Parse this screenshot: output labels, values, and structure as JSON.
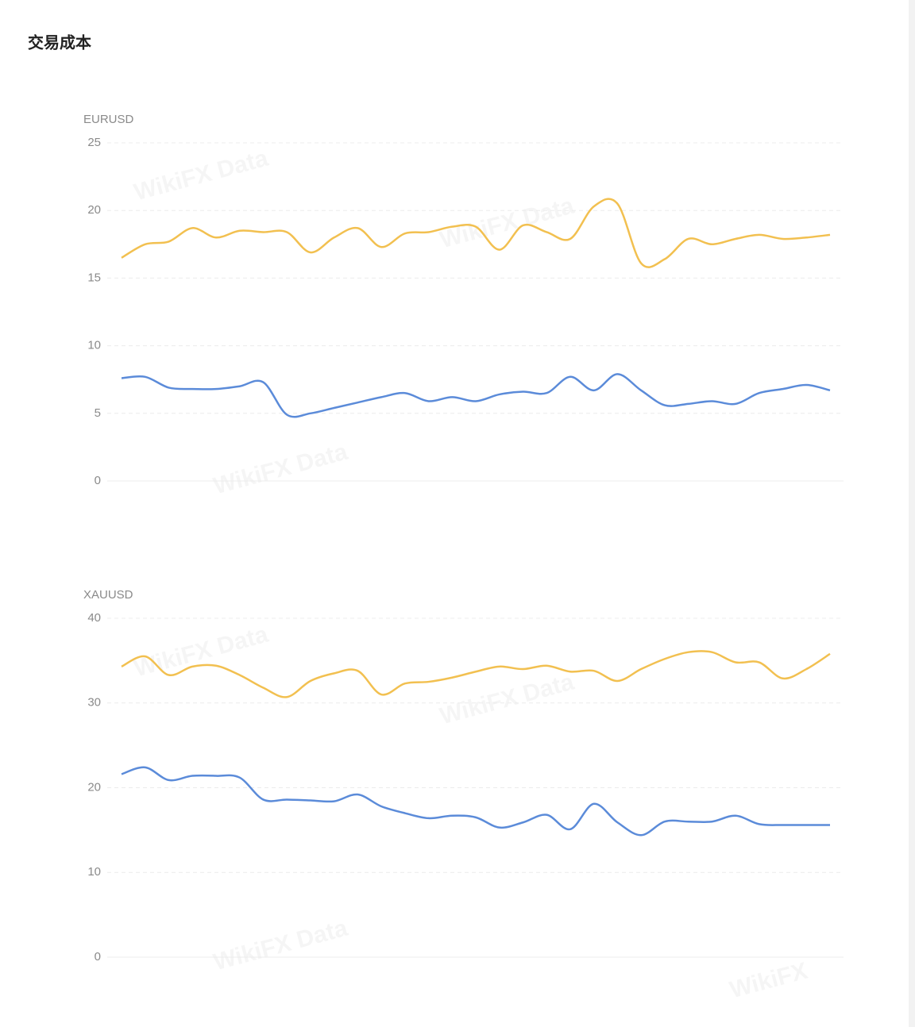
{
  "header": {
    "title": "交易成本"
  },
  "watermarks": [
    "WikiFX Data",
    "WikiFX Data",
    "WikiFX Data",
    "WikiFX Data",
    "WikiFX Data",
    "WikiFX Data",
    "WikiFX"
  ],
  "chart_data": [
    {
      "type": "line",
      "y_label": "EURUSD",
      "ylim": [
        0,
        25
      ],
      "yticks": [
        0,
        5,
        10,
        15,
        20,
        25
      ],
      "grid": true,
      "series": [
        {
          "color": "#f2c050",
          "values": [
            16.5,
            17.5,
            17.7,
            18.7,
            18.0,
            18.5,
            18.4,
            18.4,
            16.9,
            18.0,
            18.7,
            17.3,
            18.3,
            18.4,
            18.8,
            18.8,
            17.1,
            18.9,
            18.4,
            17.9,
            20.3,
            20.5,
            16.1,
            16.4,
            17.9,
            17.5,
            17.9,
            18.2,
            17.9,
            18.0,
            18.2
          ]
        },
        {
          "color": "#5b8bd9",
          "values": [
            7.6,
            7.7,
            6.9,
            6.8,
            6.8,
            7.0,
            7.3,
            4.9,
            5.0,
            5.4,
            5.8,
            6.2,
            6.5,
            5.9,
            6.2,
            5.9,
            6.4,
            6.6,
            6.5,
            7.7,
            6.7,
            7.9,
            6.7,
            5.6,
            5.7,
            5.9,
            5.7,
            6.5,
            6.8,
            7.1,
            6.7
          ]
        }
      ]
    },
    {
      "type": "line",
      "y_label": "XAUUSD",
      "ylim": [
        0,
        40
      ],
      "yticks": [
        0,
        10,
        20,
        30,
        40
      ],
      "grid": true,
      "series": [
        {
          "color": "#f2c050",
          "values": [
            34.3,
            35.5,
            33.3,
            34.3,
            34.4,
            33.3,
            31.8,
            30.7,
            32.6,
            33.5,
            33.8,
            31.0,
            32.3,
            32.5,
            33.0,
            33.7,
            34.3,
            34.0,
            34.4,
            33.7,
            33.8,
            32.6,
            34.0,
            35.2,
            36.0,
            36.0,
            34.8,
            34.8,
            32.9,
            34.0,
            35.8
          ]
        },
        {
          "color": "#5b8bd9",
          "values": [
            21.6,
            22.4,
            20.9,
            21.4,
            21.4,
            21.2,
            18.6,
            18.6,
            18.5,
            18.4,
            19.2,
            17.8,
            17.0,
            16.4,
            16.7,
            16.5,
            15.3,
            15.9,
            16.8,
            15.1,
            18.1,
            15.9,
            14.4,
            16.0,
            16.0,
            16.0,
            16.7,
            15.7,
            15.6,
            15.6,
            15.6
          ]
        }
      ]
    }
  ]
}
